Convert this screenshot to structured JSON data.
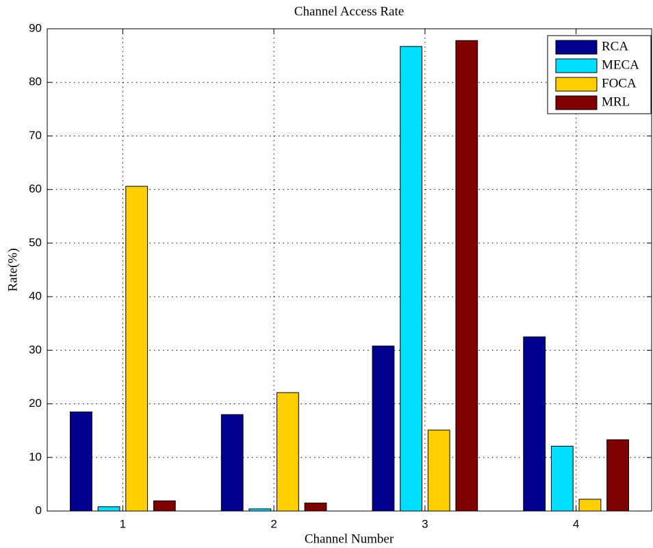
{
  "chart_data": {
    "type": "bar",
    "title": "Channel Access Rate",
    "x_label": "Channel Number",
    "y_label": "Rate(%)",
    "categories": [
      "1",
      "2",
      "3",
      "4"
    ],
    "series": [
      {
        "name": "RCA",
        "color": "#00008f",
        "values": [
          18.5,
          18.0,
          30.8,
          32.5
        ]
      },
      {
        "name": "MECA",
        "color": "#00dfff",
        "values": [
          0.8,
          0.4,
          86.7,
          12.1
        ]
      },
      {
        "name": "FOCA",
        "color": "#ffcf00",
        "values": [
          60.6,
          22.1,
          15.1,
          2.2
        ]
      },
      {
        "name": "MRL",
        "color": "#7f0000",
        "values": [
          1.9,
          1.5,
          87.8,
          13.3
        ]
      }
    ],
    "ylim": [
      0,
      90
    ],
    "yticks": [
      0,
      10,
      20,
      30,
      40,
      50,
      60,
      70,
      80,
      90
    ],
    "grid": true,
    "legend_position": "upper right"
  }
}
